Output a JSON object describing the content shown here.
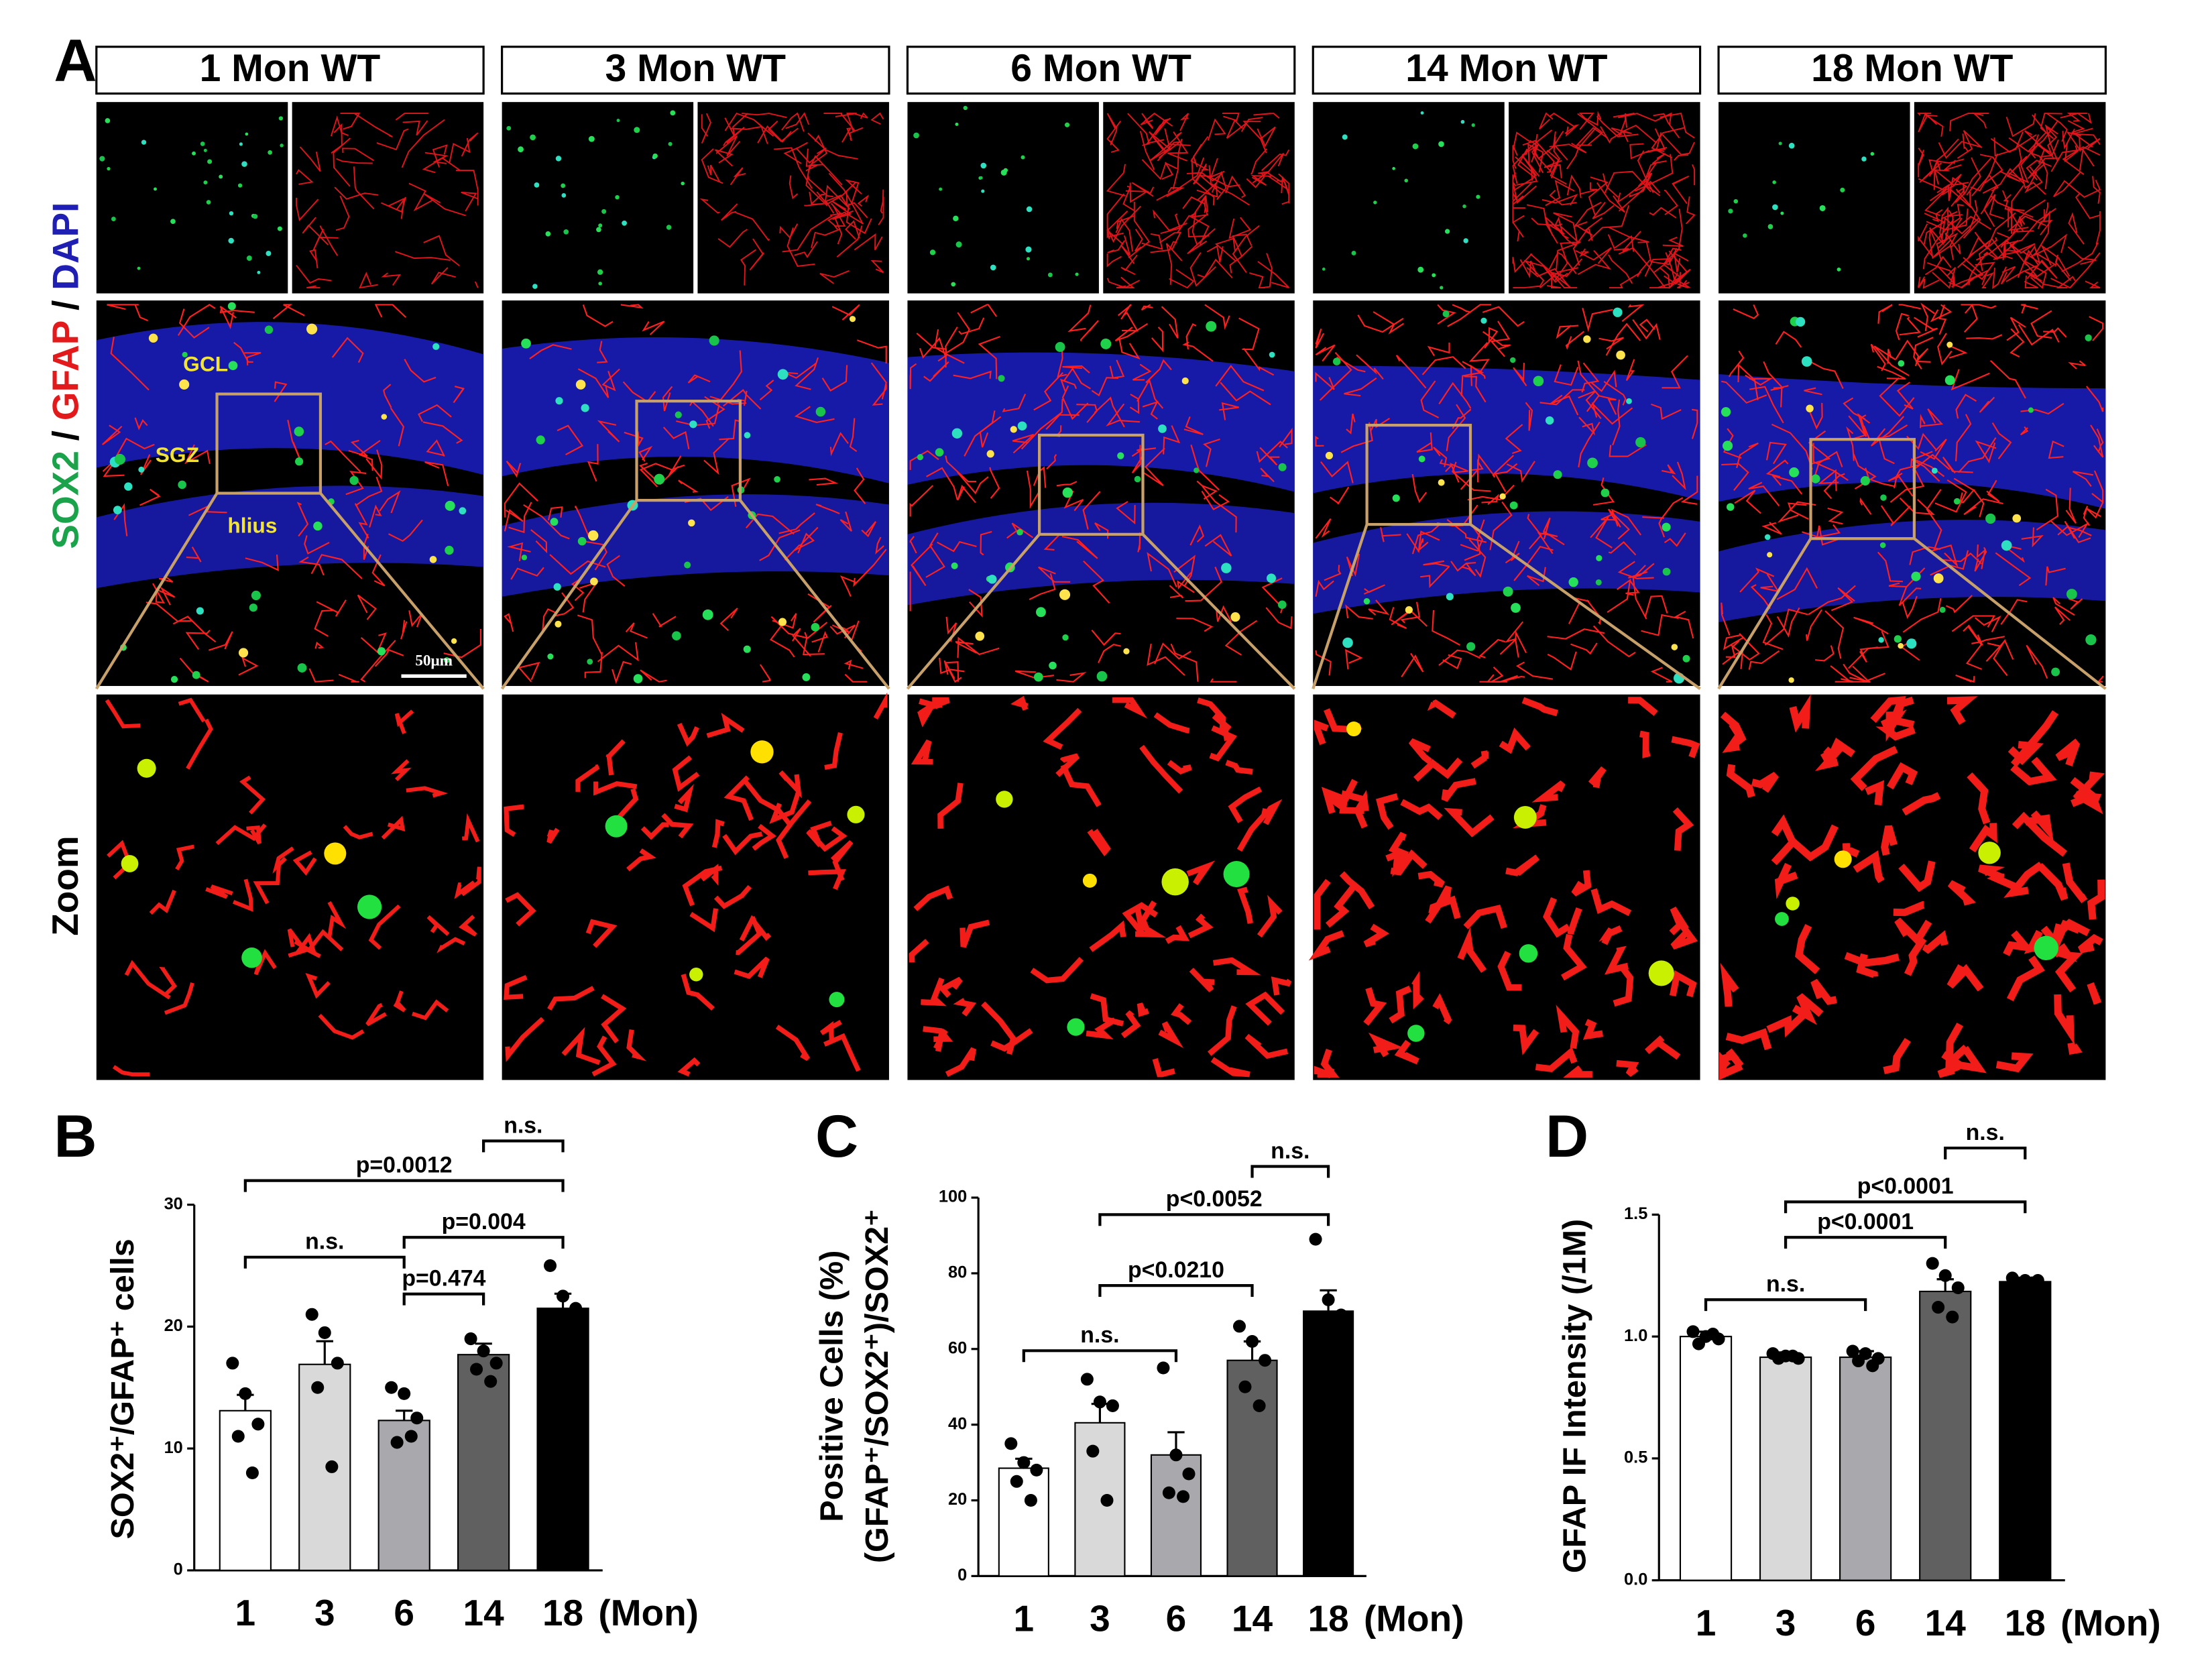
{
  "figure_a": {
    "label": "A",
    "columns": [
      "1 Mon WT",
      "3 Mon WT",
      "6 Mon WT",
      "14 Mon WT",
      "18 Mon WT"
    ],
    "stain_parts": [
      "SOX2",
      "/",
      "GFAP",
      "/",
      "DAPI"
    ],
    "zoom_label": "Zoom",
    "regions": [
      "GCL",
      "SGZ",
      "hlius"
    ],
    "scale_bar": "50μm"
  },
  "chart_data": [
    {
      "type": "bar",
      "panel": "B",
      "ylabel": "SOX2⁺/GFAP⁺ cells",
      "x_unit": "(Mon)",
      "categories": [
        "1",
        "3",
        "6",
        "14",
        "18"
      ],
      "colors": [
        "#ffffff",
        "#d9d9d9",
        "#a8a8ad",
        "#606060",
        "#000000"
      ],
      "values": [
        13.1,
        16.9,
        12.3,
        17.7,
        21.5
      ],
      "errors": [
        1.3,
        1.9,
        0.8,
        0.9,
        1.2
      ],
      "points": [
        [
          17,
          14.5,
          12,
          11,
          8
        ],
        [
          21,
          19.5,
          17,
          15,
          8.5
        ],
        [
          15,
          14.5,
          12.5,
          10.5,
          11
        ],
        [
          19,
          18,
          17,
          16.5,
          15.5
        ],
        [
          25,
          22.5,
          21.5,
          21,
          21
        ]
      ],
      "ylim": [
        0,
        30
      ],
      "yticks": [
        0,
        10,
        20,
        30
      ],
      "comparisons": [
        {
          "pair": [
            "14",
            "18"
          ],
          "label": "n.s."
        },
        {
          "pair": [
            "1",
            "18"
          ],
          "label": "p=0.0012"
        },
        {
          "pair": [
            "6",
            "18"
          ],
          "label": "p=0.004"
        },
        {
          "pair": [
            "1",
            "6"
          ],
          "label": "n.s."
        },
        {
          "pair": [
            "6",
            "14"
          ],
          "label": "p=0.474"
        }
      ]
    },
    {
      "type": "bar",
      "panel": "C",
      "ylabel": [
        "Positive Cells (%)",
        "(GFAP⁺/SOX2⁺)/SOX2⁺"
      ],
      "x_unit": "(Mon)",
      "categories": [
        "1",
        "3",
        "6",
        "14",
        "18"
      ],
      "colors": [
        "#ffffff",
        "#d9d9d9",
        "#a8a8ad",
        "#606060",
        "#000000"
      ],
      "values": [
        28.5,
        40.5,
        32,
        57,
        70
      ],
      "errors": [
        2.5,
        5,
        6,
        5,
        5.5
      ],
      "points": [
        [
          35,
          30,
          28,
          25,
          20
        ],
        [
          52,
          46,
          45,
          33,
          20
        ],
        [
          55,
          32,
          27,
          22,
          21
        ],
        [
          66,
          62,
          57,
          50,
          45
        ],
        [
          89,
          73,
          69,
          66,
          63
        ]
      ],
      "ylim": [
        0,
        100
      ],
      "yticks": [
        0,
        20,
        40,
        60,
        80,
        100
      ],
      "comparisons": [
        {
          "pair": [
            "14",
            "18"
          ],
          "label": "n.s."
        },
        {
          "pair": [
            "3",
            "18"
          ],
          "label": "p<0.0052"
        },
        {
          "pair": [
            "3",
            "14"
          ],
          "label": "p<0.0210"
        },
        {
          "pair": [
            "1",
            "6"
          ],
          "label": "n.s."
        }
      ]
    },
    {
      "type": "bar",
      "panel": "D",
      "ylabel": "GFAP IF Intensity (/1M)",
      "x_unit": "(Mon)",
      "categories": [
        "1",
        "3",
        "6",
        "14",
        "18"
      ],
      "colors": [
        "#ffffff",
        "#d9d9d9",
        "#a8a8ad",
        "#606060",
        "#000000"
      ],
      "values": [
        1.0,
        0.915,
        0.915,
        1.185,
        1.225
      ],
      "errors": [
        0.02,
        0.02,
        0.025,
        0.05,
        0.01
      ],
      "points": [
        [
          1.02,
          1.0,
          0.99,
          0.97,
          1.01
        ],
        [
          0.93,
          0.92,
          0.91,
          0.91,
          0.92
        ],
        [
          0.94,
          0.93,
          0.91,
          0.9,
          0.88
        ],
        [
          1.3,
          1.25,
          1.2,
          1.12,
          1.08
        ],
        [
          1.24,
          1.23,
          1.23,
          1.22,
          1.22
        ]
      ],
      "ylim": [
        0,
        1.5
      ],
      "yticks": [
        {
          "value": 0,
          "label": "0.0"
        },
        0.5,
        {
          "value": 1,
          "label": "1.0"
        },
        1.5
      ],
      "comparisons": [
        {
          "pair": [
            "14",
            "18"
          ],
          "label": "n.s."
        },
        {
          "pair": [
            "3",
            "18"
          ],
          "label": "p<0.0001"
        },
        {
          "pair": [
            "3",
            "14"
          ],
          "label": "p<0.0001"
        },
        {
          "pair": [
            "1",
            "6"
          ],
          "label": "n.s."
        }
      ]
    }
  ]
}
